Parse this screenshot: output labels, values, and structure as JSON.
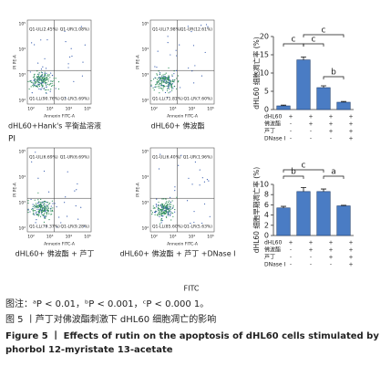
{
  "figure": {
    "y_axis_label": "PI",
    "x_axis_label": "FITC",
    "tick_labels": [
      "10²",
      "10³",
      "10⁴",
      "10⁵"
    ],
    "flow_panels": [
      {
        "quadrants": [
          "Q1-UL(2.45%)",
          "Q1-UR(1.08%)",
          "Q1-LL(90.76%)",
          "Q1-LR(5.69%)"
        ],
        "y_label": "PI PE-A",
        "x_label": "Annexin FITC-A",
        "caption": "dHL60+Hank's 平衡盐溶液"
      },
      {
        "quadrants": [
          "Q1-UL(7.98%)",
          "Q1-UR(12.61%)",
          "Q1-LL(71.81%)",
          "Q1-LR(7.60%)"
        ],
        "y_label": "PI PE-A",
        "x_label": "Annexin FITC-A",
        "caption": "dHL60+ 佛波酯"
      },
      {
        "quadrants": [
          "Q1-UL(6.69%)",
          "Q1-UR(6.69%)",
          "Q1-LL(79.37%)",
          "Q1-LR(9.28%)"
        ],
        "y_label": "PI PE-A",
        "x_label": "Annexin FITC-A",
        "caption": "dHL60+ 佛波酯 + 芦丁"
      },
      {
        "quadrants": [
          "Q1-UL(6.40%)",
          "Q1-UR(1.96%)",
          "Q1-LL(85.60%)",
          "Q1-LR(5.63%)"
        ],
        "y_label": "PI PE-A",
        "x_label": "Annexin FITC-A",
        "caption": "dHL60+ 佛波酯 + 芦丁 +DNase Ⅰ"
      }
    ]
  },
  "chart_data": [
    {
      "type": "bar",
      "y_label": "dHL60 细胞凋亡率 (%)",
      "values": [
        1.0,
        13.6,
        6.0,
        2.0
      ],
      "errors": [
        0.2,
        0.8,
        0.5,
        0.2
      ],
      "color": "#4a7cc4",
      "ylim": [
        0,
        20
      ],
      "yticks": [
        0,
        5,
        10,
        15,
        20
      ],
      "significance": [
        "c",
        "c",
        "c",
        "b"
      ],
      "treatment_rows": [
        {
          "label": "dHL60",
          "signs": [
            "+",
            "+",
            "+",
            "+"
          ]
        },
        {
          "label": "佛波酯",
          "signs": [
            "-",
            "+",
            "+",
            "+"
          ]
        },
        {
          "label": "芦丁",
          "signs": [
            "-",
            "-",
            "+",
            "+"
          ]
        },
        {
          "label": "DNase Ⅰ",
          "signs": [
            "-",
            "-",
            "-",
            "+"
          ]
        }
      ]
    },
    {
      "type": "bar",
      "y_label": "dHL60 细胞早期凋亡率 (%)",
      "values": [
        5.4,
        8.6,
        8.6,
        5.8
      ],
      "errors": [
        0.3,
        0.8,
        0.5,
        0.1
      ],
      "color": "#4a7cc4",
      "ylim": [
        0,
        10
      ],
      "yticks": [
        0,
        2,
        4,
        6,
        8,
        10
      ],
      "significance": [
        "c",
        "b",
        "a"
      ],
      "treatment_rows": [
        {
          "label": "dHL60",
          "signs": [
            "+",
            "+",
            "+",
            "+"
          ]
        },
        {
          "label": "佛波酯",
          "signs": [
            "-",
            "+",
            "+",
            "+"
          ]
        },
        {
          "label": "芦丁",
          "signs": [
            "-",
            "-",
            "+",
            "+"
          ]
        },
        {
          "label": "DNase Ⅰ",
          "signs": [
            "-",
            "-",
            "-",
            "+"
          ]
        }
      ]
    }
  ],
  "caption": {
    "note": "图注：ᵃP < 0.01，ᵇP < 0.001，ᶜP < 0.000 1。",
    "title_cn": "图 5 丨芦丁对佛波酯刺激下 dHL60 细胞凋亡的影响",
    "title_en": "Figure 5 丨 Effects of rutin on the apoptosis of dHL60 cells stimulated by phorbol 12-myristate 13-acetate"
  }
}
